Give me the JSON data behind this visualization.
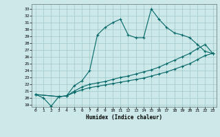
{
  "xlabel": "Humidex (Indice chaleur)",
  "background_color": "#cce8e8",
  "grid_color": "#a8cccc",
  "line_color": "#006666",
  "xlim": [
    -0.5,
    23.5
  ],
  "ylim": [
    18.7,
    33.7
  ],
  "xticks": [
    0,
    1,
    2,
    3,
    4,
    5,
    6,
    7,
    8,
    9,
    10,
    11,
    12,
    13,
    14,
    15,
    16,
    17,
    18,
    19,
    20,
    21,
    22,
    23
  ],
  "yticks": [
    19,
    20,
    21,
    22,
    23,
    24,
    25,
    26,
    27,
    28,
    29,
    30,
    31,
    32,
    33
  ],
  "line1_x": [
    0,
    1,
    2,
    3,
    4,
    5,
    6,
    7,
    8,
    9,
    10,
    11,
    12,
    13,
    14,
    15,
    16,
    17,
    18,
    19,
    20,
    21,
    22,
    23
  ],
  "line1_y": [
    20.5,
    20.0,
    18.8,
    20.2,
    20.3,
    21.8,
    22.5,
    24.0,
    29.2,
    30.3,
    31.0,
    31.5,
    29.2,
    28.8,
    28.8,
    33.0,
    31.5,
    30.3,
    29.5,
    29.2,
    28.8,
    27.8,
    26.8,
    26.5
  ],
  "line2_x": [
    0,
    3,
    4,
    5,
    6,
    7,
    8,
    9,
    10,
    11,
    12,
    13,
    14,
    15,
    16,
    17,
    18,
    19,
    20,
    21,
    22,
    23
  ],
  "line2_y": [
    20.5,
    20.2,
    20.3,
    21.0,
    21.6,
    22.0,
    22.2,
    22.4,
    22.7,
    23.0,
    23.2,
    23.5,
    23.8,
    24.1,
    24.5,
    25.0,
    25.5,
    26.0,
    26.5,
    27.2,
    27.8,
    26.5
  ],
  "line3_x": [
    0,
    3,
    4,
    5,
    6,
    7,
    8,
    9,
    10,
    11,
    12,
    13,
    14,
    15,
    16,
    17,
    18,
    19,
    20,
    21,
    22,
    23
  ],
  "line3_y": [
    20.5,
    20.2,
    20.3,
    20.8,
    21.2,
    21.5,
    21.7,
    21.9,
    22.1,
    22.3,
    22.5,
    22.7,
    22.9,
    23.2,
    23.5,
    23.8,
    24.2,
    24.6,
    25.0,
    25.6,
    26.2,
    26.5
  ]
}
